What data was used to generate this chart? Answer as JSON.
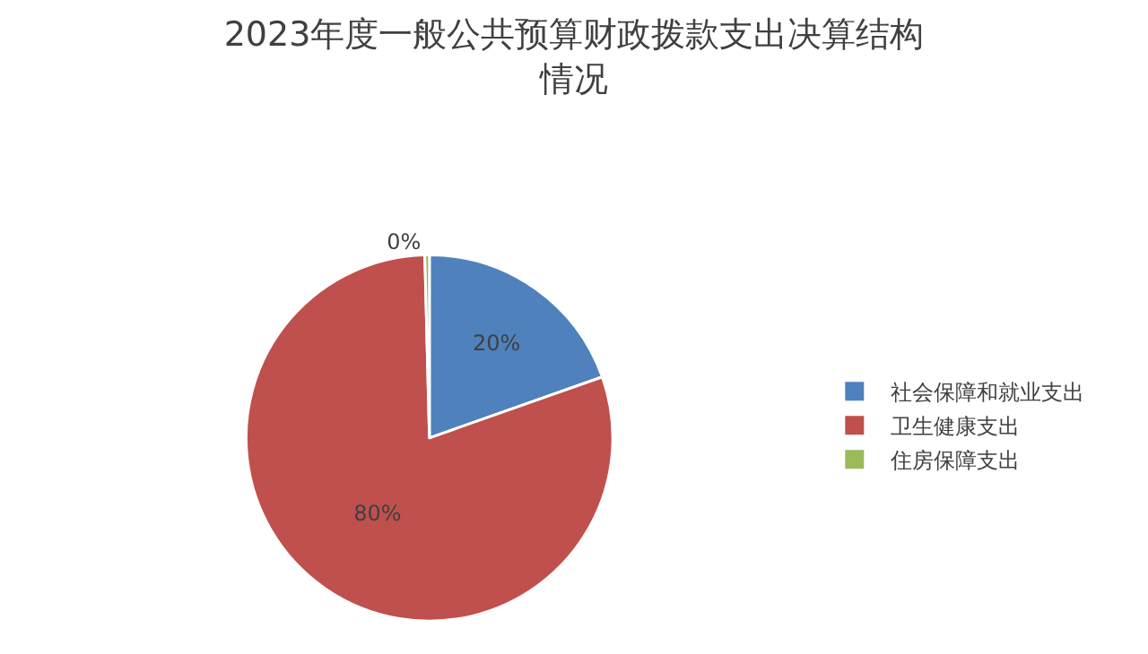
{
  "chart_data": {
    "type": "pie",
    "title": "2023年度一般公共预算财政拨款支出决算结构情况",
    "categories": [
      "社会保障和就业支出",
      "卫生健康支出",
      "住房保障支出"
    ],
    "values": [
      19.6,
      80.0,
      0.4
    ],
    "value_labels": [
      "20%",
      "80%",
      "0%"
    ],
    "colors": [
      "#4f81bd",
      "#c0504d",
      "#9bbb59"
    ],
    "legend": "right"
  }
}
